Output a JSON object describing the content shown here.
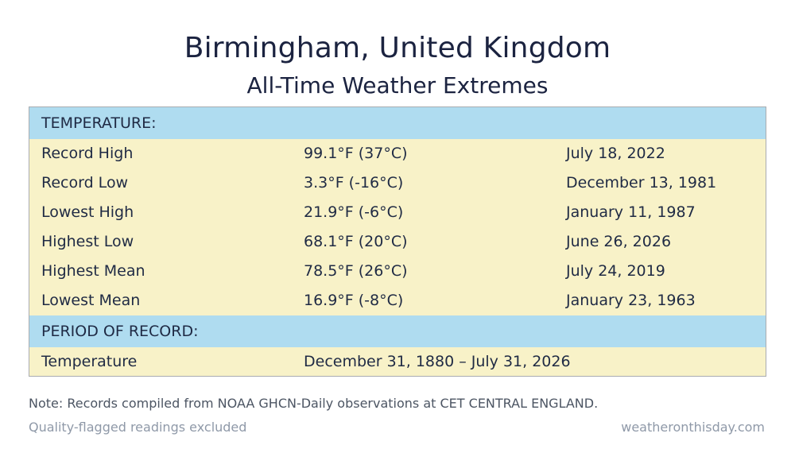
{
  "header": {
    "title": "Birmingham, United Kingdom",
    "subtitle": "All-Time Weather Extremes"
  },
  "temperature_section": {
    "heading": "TEMPERATURE:",
    "rows": [
      {
        "label": "Record High",
        "value": "99.1°F (37°C)",
        "date": "July 18, 2022"
      },
      {
        "label": "Record Low",
        "value": "3.3°F (-16°C)",
        "date": "December 13, 1981"
      },
      {
        "label": "Lowest High",
        "value": "21.9°F (-6°C)",
        "date": "January 11, 1987"
      },
      {
        "label": "Highest Low",
        "value": "68.1°F (20°C)",
        "date": "June 26, 2026"
      },
      {
        "label": "Highest Mean",
        "value": "78.5°F (26°C)",
        "date": "July 24, 2019"
      },
      {
        "label": "Lowest Mean",
        "value": "16.9°F (-8°C)",
        "date": "January 23, 1963"
      }
    ]
  },
  "period_section": {
    "heading": "PERIOD OF RECORD:",
    "rows": [
      {
        "label": "Temperature",
        "value": "December 31, 1880 – July 31, 2026"
      }
    ]
  },
  "footer": {
    "note": "Note: Records compiled from NOAA GHCN-Daily observations at CET CENTRAL ENGLAND.",
    "quality": "Quality-flagged readings excluded",
    "site": "weatheronthisday.com"
  },
  "colors": {
    "section_background": "#afdcf0",
    "row_background": "#f8f2c8",
    "text": "#1f2a44",
    "muted_text": "#8f99a8"
  }
}
